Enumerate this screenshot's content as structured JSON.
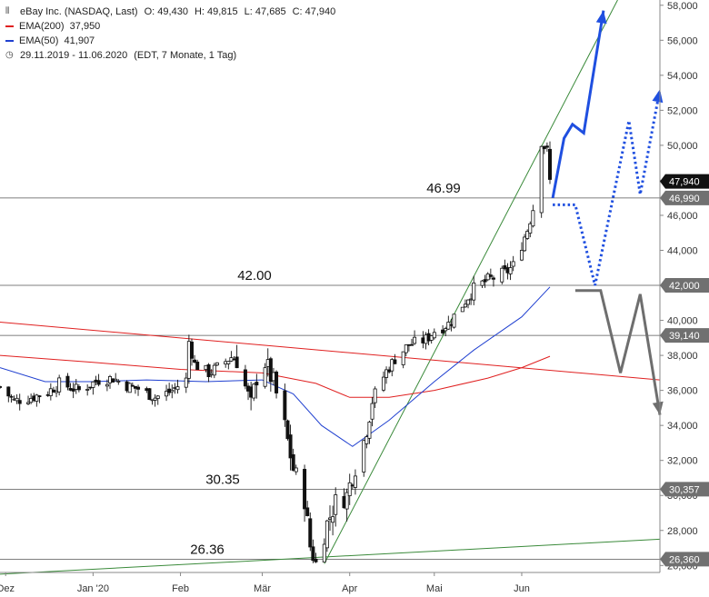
{
  "legend": {
    "name": "eBay Inc. (NASDAQ, Last)",
    "o_label": "O:",
    "o": "49,430",
    "h_label": "H:",
    "h": "49,815",
    "l_label": "L:",
    "l": "47,685",
    "c_label": "C:",
    "c": "47,940",
    "ema200_label": "EMA(200)",
    "ema200": "37,950",
    "ema50_label": "EMA(50)",
    "ema50": "41,907",
    "range": "29.11.2019 - 11.06.2020",
    "info": "(EDT, 7 Monate, 1 Tag)"
  },
  "colors": {
    "ema200": "#e02020",
    "ema50": "#2040d0",
    "trend": "#3a8a3a",
    "hline": "#555555",
    "projection_blue": "#1f4fe0",
    "projection_gray": "#6e6e6e",
    "tag_dark": "#111111",
    "tag_gray": "#707070"
  },
  "chart_data": {
    "type": "candlestick",
    "title": "eBay Inc. (NASDAQ, Last)",
    "x_axis": {
      "labels": [
        "Dez",
        "Jan '20",
        "Feb",
        "Mär",
        "Apr",
        "Mai",
        "Jun"
      ],
      "label_dates": [
        "2019-12-01",
        "2020-01-01",
        "2020-02-01",
        "2020-03-01",
        "2020-04-01",
        "2020-05-01",
        "2020-06-01"
      ],
      "range": [
        "2019-11-29",
        "2020-07-20"
      ]
    },
    "y_axis": {
      "range": [
        25.6,
        58.3
      ],
      "ticks": [
        26,
        28,
        30,
        32,
        34,
        36,
        38,
        40,
        42,
        44,
        46,
        48,
        50,
        52,
        54,
        56,
        58
      ],
      "tick_labels": [
        "26,000",
        "28,000",
        "30,000",
        "32,000",
        "34,000",
        "36,000",
        "38,000",
        "40,000",
        "42,000",
        "44,000",
        "46,000",
        "48,000",
        "50,000",
        "52,000",
        "54,000",
        "56,000",
        "58,000"
      ],
      "position": "right"
    },
    "price_path": [
      [
        "2019-11-29",
        36.2
      ],
      [
        "2019-12-04",
        35.4
      ],
      [
        "2019-12-10",
        35.6
      ],
      [
        "2019-12-16",
        35.9
      ],
      [
        "2019-12-20",
        36.4
      ],
      [
        "2019-12-27",
        36.0
      ],
      [
        "2020-01-03",
        36.6
      ],
      [
        "2020-01-08",
        36.7
      ],
      [
        "2020-01-14",
        36.2
      ],
      [
        "2020-01-17",
        36.1
      ],
      [
        "2020-01-23",
        35.6
      ],
      [
        "2020-01-28",
        35.9
      ],
      [
        "2020-02-03",
        36.6
      ],
      [
        "2020-02-04",
        38.8
      ],
      [
        "2020-02-06",
        37.5
      ],
      [
        "2020-02-11",
        37.0
      ],
      [
        "2020-02-14",
        37.3
      ],
      [
        "2020-02-19",
        37.9
      ],
      [
        "2020-02-21",
        37.8
      ],
      [
        "2020-02-24",
        36.2
      ],
      [
        "2020-02-26",
        35.1
      ],
      [
        "2020-02-28",
        36.8
      ],
      [
        "2020-03-02",
        37.6
      ],
      [
        "2020-03-05",
        36.4
      ],
      [
        "2020-03-09",
        33.9
      ],
      [
        "2020-03-12",
        31.5
      ],
      [
        "2020-03-16",
        29.8
      ],
      [
        "2020-03-18",
        27.1
      ],
      [
        "2020-03-20",
        26.1
      ],
      [
        "2020-03-24",
        28.4
      ],
      [
        "2020-03-27",
        29.6
      ],
      [
        "2020-03-31",
        30.0
      ],
      [
        "2020-04-02",
        31.2
      ],
      [
        "2020-04-06",
        33.1
      ],
      [
        "2020-04-09",
        35.5
      ],
      [
        "2020-04-14",
        37.1
      ],
      [
        "2020-04-17",
        37.8
      ],
      [
        "2020-04-22",
        38.6
      ],
      [
        "2020-04-28",
        38.9
      ],
      [
        "2020-05-01",
        39.4
      ],
      [
        "2020-05-06",
        39.8
      ],
      [
        "2020-05-11",
        40.9
      ],
      [
        "2020-05-15",
        41.8
      ],
      [
        "2020-05-20",
        42.3
      ],
      [
        "2020-05-26",
        42.7
      ],
      [
        "2020-05-29",
        43.1
      ],
      [
        "2020-06-03",
        45.2
      ],
      [
        "2020-06-05",
        46.4
      ],
      [
        "2020-06-08",
        50.3
      ],
      [
        "2020-06-10",
        49.6
      ],
      [
        "2020-06-11",
        47.94
      ]
    ],
    "ema200": [
      [
        "2019-11-29",
        38.0
      ],
      [
        "2020-01-01",
        37.6
      ],
      [
        "2020-02-01",
        37.2
      ],
      [
        "2020-03-01",
        37.0
      ],
      [
        "2020-03-20",
        36.4
      ],
      [
        "2020-04-01",
        35.6
      ],
      [
        "2020-04-15",
        35.6
      ],
      [
        "2020-05-01",
        36.0
      ],
      [
        "2020-05-20",
        36.7
      ],
      [
        "2020-06-01",
        37.3
      ],
      [
        "2020-06-11",
        37.95
      ]
    ],
    "ema50": [
      [
        "2019-11-29",
        37.3
      ],
      [
        "2019-12-15",
        36.5
      ],
      [
        "2020-01-01",
        36.5
      ],
      [
        "2020-01-20",
        36.6
      ],
      [
        "2020-02-10",
        36.5
      ],
      [
        "2020-03-01",
        36.6
      ],
      [
        "2020-03-12",
        35.8
      ],
      [
        "2020-03-22",
        34.0
      ],
      [
        "2020-04-02",
        32.8
      ],
      [
        "2020-04-15",
        34.3
      ],
      [
        "2020-05-01",
        36.5
      ],
      [
        "2020-05-15",
        38.3
      ],
      [
        "2020-06-01",
        40.2
      ],
      [
        "2020-06-11",
        41.907
      ]
    ],
    "levels": [
      {
        "label": "46.99",
        "value": 46.99,
        "tag": "46,990",
        "tag_style": "gray"
      },
      {
        "label": "42.00",
        "value": 42.0,
        "tag": "42,000",
        "tag_style": "gray"
      },
      {
        "label": "",
        "value": 39.14,
        "tag": "39,140",
        "tag_style": "gray"
      },
      {
        "label": "30.35",
        "value": 30.357,
        "tag": "30,357",
        "tag_style": "gray"
      },
      {
        "label": "26.36",
        "value": 26.36,
        "tag": "26,360",
        "tag_style": "gray"
      }
    ],
    "last_tag": {
      "value": 47.94,
      "tag": "47,940",
      "tag_style": "dark"
    },
    "trendlines": [
      {
        "color": "green",
        "from": [
          "2020-03-23",
          26.1
        ],
        "to": [
          "2020-07-05",
          58.3
        ]
      },
      {
        "color": "green",
        "from": [
          "2019-11-29",
          25.5
        ],
        "to": [
          "2020-07-20",
          27.5
        ]
      },
      {
        "color": "red",
        "from": [
          "2019-11-29",
          39.9
        ],
        "to": [
          "2020-07-20",
          36.6
        ]
      }
    ],
    "projections": [
      {
        "style": "solid",
        "color": "blue",
        "arrow": true,
        "points": [
          [
            "2020-06-12",
            46.99
          ],
          [
            "2020-06-16",
            50.4
          ],
          [
            "2020-06-19",
            51.2
          ],
          [
            "2020-06-23",
            50.7
          ],
          [
            "2020-06-30",
            57.7
          ]
        ]
      },
      {
        "style": "dotted",
        "color": "blue",
        "arrow": true,
        "points": [
          [
            "2020-06-12",
            46.6
          ],
          [
            "2020-06-20",
            46.6
          ],
          [
            "2020-06-27",
            42.0
          ],
          [
            "2020-07-09",
            51.4
          ],
          [
            "2020-07-13",
            47.2
          ],
          [
            "2020-07-20",
            53.2
          ]
        ]
      },
      {
        "style": "solid",
        "color": "gray",
        "arrow": true,
        "points": [
          [
            "2020-06-20",
            41.7
          ],
          [
            "2020-06-29",
            41.7
          ],
          [
            "2020-07-06",
            37.0
          ],
          [
            "2020-07-13",
            41.5
          ],
          [
            "2020-07-20",
            34.6
          ]
        ]
      }
    ]
  }
}
